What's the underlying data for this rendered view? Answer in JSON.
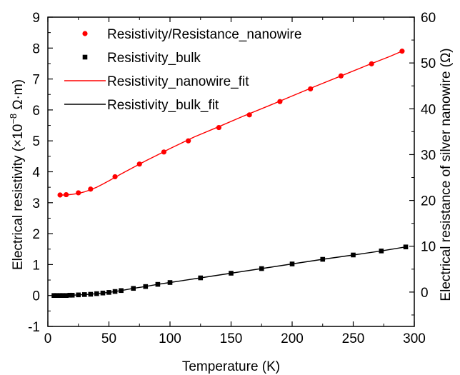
{
  "chart_data": {
    "type": "scatter",
    "xlabel": "Temperature (K)",
    "ylabel_left": {
      "prefix": "Electrical resistivity (×10",
      "exponent": "−8",
      "suffix": " Ω·m)"
    },
    "ylabel_right": "Electrical resistance of silver nanowire (Ω)",
    "xlim": [
      0,
      300
    ],
    "ylim": [
      -1,
      9
    ],
    "ylim_right": [
      -7.5,
      60
    ],
    "x_ticks": [
      0,
      50,
      100,
      150,
      200,
      250,
      300
    ],
    "y_ticks": [
      -1,
      0,
      1,
      2,
      3,
      4,
      5,
      6,
      7,
      8,
      9
    ],
    "y_ticks_right": [
      0,
      10,
      20,
      30,
      40,
      50,
      60
    ],
    "grid": false,
    "legend_placement": "top-left",
    "series": [
      {
        "name": "Resistivity/Resistance_nanowire",
        "kind": "points",
        "marker": "circle",
        "color": "#ff0000",
        "x": [
          10,
          15,
          25,
          35,
          55,
          75,
          95,
          115,
          140,
          165,
          190,
          215,
          240,
          265,
          290
        ],
        "y": [
          3.25,
          3.26,
          3.32,
          3.44,
          3.84,
          4.25,
          4.64,
          5.0,
          5.43,
          5.84,
          6.27,
          6.68,
          7.1,
          7.49,
          7.9
        ]
      },
      {
        "name": "Resistivity_bulk",
        "kind": "points",
        "marker": "square",
        "color": "#000000",
        "x": [
          5,
          7,
          10,
          12,
          15,
          18,
          20,
          25,
          30,
          35,
          40,
          45,
          50,
          55,
          60,
          70,
          80,
          90,
          100,
          125,
          150,
          175,
          200,
          225,
          250,
          273,
          293
        ],
        "y": [
          0.0,
          0.0,
          0.0,
          0.0,
          0.0,
          0.01,
          0.01,
          0.02,
          0.03,
          0.04,
          0.06,
          0.08,
          0.1,
          0.13,
          0.16,
          0.23,
          0.29,
          0.36,
          0.42,
          0.57,
          0.72,
          0.87,
          1.02,
          1.17,
          1.31,
          1.44,
          1.57
        ]
      },
      {
        "name": "Resistivity_nanowire_fit",
        "kind": "line",
        "color": "#ff0000",
        "x": [
          10,
          15,
          20,
          25,
          30,
          35,
          40,
          45,
          50,
          55,
          60,
          70,
          80,
          90,
          100,
          120,
          140,
          160,
          180,
          200,
          220,
          240,
          260,
          280,
          290
        ],
        "y": [
          3.25,
          3.25,
          3.27,
          3.3,
          3.35,
          3.42,
          3.5,
          3.6,
          3.71,
          3.82,
          3.93,
          4.14,
          4.35,
          4.55,
          4.75,
          5.13,
          5.46,
          5.8,
          6.12,
          6.45,
          6.78,
          7.1,
          7.42,
          7.73,
          7.9
        ]
      },
      {
        "name": "Resistivity_bulk_fit",
        "kind": "line",
        "color": "#000000",
        "x": [
          5,
          10,
          15,
          20,
          25,
          30,
          35,
          40,
          45,
          50,
          55,
          60,
          70,
          80,
          90,
          100,
          125,
          150,
          175,
          200,
          225,
          250,
          273,
          293
        ],
        "y": [
          0.0,
          0.0,
          0.0,
          0.01,
          0.02,
          0.03,
          0.04,
          0.06,
          0.08,
          0.1,
          0.13,
          0.16,
          0.23,
          0.29,
          0.36,
          0.42,
          0.57,
          0.72,
          0.87,
          1.02,
          1.17,
          1.31,
          1.44,
          1.57
        ]
      }
    ]
  }
}
